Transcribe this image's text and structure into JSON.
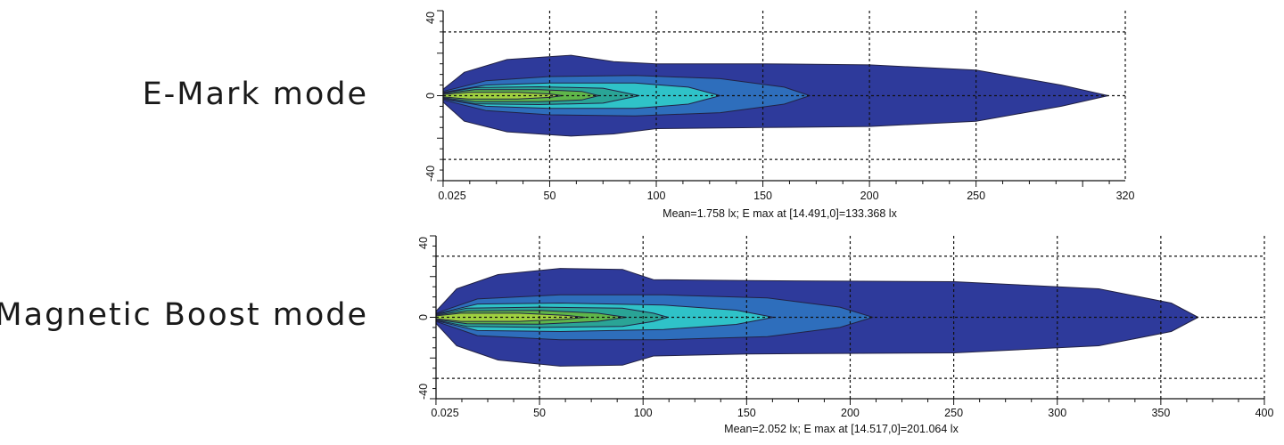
{
  "labels": {
    "chart1": "E-Mark mode",
    "chart2": "Magnetic Boost mode"
  },
  "colors": {
    "c1": "#2e3a9b",
    "c2": "#2e6ebc",
    "c3": "#2fc2c8",
    "c4": "#2aa496",
    "c5": "#5fb64a",
    "c6": "#9fd140",
    "outline": "#222244",
    "grid": "#111111"
  },
  "chart_data": [
    {
      "type": "area",
      "title": "E-Mark mode",
      "caption": "Mean=1.758  lx;  E  max  at [14.491,0]=133.368 lx",
      "xlim": [
        0.025,
        320
      ],
      "ylim": [
        -40,
        40
      ],
      "x_ticks": [
        "0.025",
        "50",
        "100",
        "150",
        "200",
        "250",
        "320"
      ],
      "x_tick_values": [
        0.025,
        50,
        100,
        150,
        200,
        250,
        320
      ],
      "y_ticks": [
        "40",
        "0",
        "-40"
      ],
      "y_tick_values": [
        40,
        0,
        -40
      ],
      "grid": true,
      "series": [
        {
          "color_key": "c1",
          "points": [
            [
              0.025,
              -3
            ],
            [
              10,
              -12
            ],
            [
              30,
              -17
            ],
            [
              60,
              -19
            ],
            [
              80,
              -18
            ],
            [
              100,
              -15.5
            ],
            [
              150,
              -15
            ],
            [
              200,
              -14.5
            ],
            [
              250,
              -12
            ],
            [
              290,
              -5
            ],
            [
              312,
              0
            ],
            [
              290,
              5
            ],
            [
              250,
              12
            ],
            [
              200,
              14.5
            ],
            [
              150,
              15
            ],
            [
              100,
              15
            ],
            [
              80,
              16
            ],
            [
              60,
              19
            ],
            [
              30,
              17
            ],
            [
              10,
              11
            ],
            [
              0.025,
              3
            ]
          ]
        },
        {
          "color_key": "c2",
          "points": [
            [
              0.025,
              -2
            ],
            [
              20,
              -7
            ],
            [
              50,
              -9
            ],
            [
              90,
              -9.5
            ],
            [
              130,
              -8
            ],
            [
              160,
              -4
            ],
            [
              172,
              0
            ],
            [
              160,
              4
            ],
            [
              130,
              8
            ],
            [
              90,
              9.5
            ],
            [
              50,
              9
            ],
            [
              20,
              7
            ],
            [
              0.025,
              2
            ]
          ]
        },
        {
          "color_key": "c3",
          "points": [
            [
              0.025,
              -1.6
            ],
            [
              20,
              -5
            ],
            [
              50,
              -6
            ],
            [
              90,
              -6
            ],
            [
              115,
              -4
            ],
            [
              130,
              0
            ],
            [
              115,
              4
            ],
            [
              90,
              6
            ],
            [
              50,
              6
            ],
            [
              20,
              5
            ],
            [
              0.025,
              1.6
            ]
          ]
        },
        {
          "color_key": "c4",
          "points": [
            [
              0.025,
              -1.3
            ],
            [
              15,
              -3.8
            ],
            [
              45,
              -4.2
            ],
            [
              75,
              -3.5
            ],
            [
              92,
              0
            ],
            [
              75,
              3.5
            ],
            [
              45,
              4.2
            ],
            [
              15,
              3.8
            ],
            [
              0.025,
              1.3
            ]
          ]
        },
        {
          "color_key": "c5",
          "points": [
            [
              0.025,
              -1
            ],
            [
              15,
              -2.8
            ],
            [
              45,
              -2.8
            ],
            [
              65,
              -2
            ],
            [
              73,
              0
            ],
            [
              65,
              2
            ],
            [
              45,
              2.8
            ],
            [
              15,
              2.8
            ],
            [
              0.025,
              1
            ]
          ]
        },
        {
          "color_key": "c6",
          "points": [
            [
              0.025,
              -0.6
            ],
            [
              12,
              -1.6
            ],
            [
              35,
              -1.6
            ],
            [
              50,
              -0.8
            ],
            [
              56,
              0
            ],
            [
              50,
              0.8
            ],
            [
              35,
              1.6
            ],
            [
              12,
              1.6
            ],
            [
              0.025,
              0.6
            ]
          ]
        }
      ]
    },
    {
      "type": "area",
      "title": "Magnetic Boost mode",
      "caption": "Mean=2.052 lx; E max at [14.517,0]=201.064 lx",
      "xlim": [
        0.025,
        400
      ],
      "ylim": [
        -40,
        40
      ],
      "x_ticks": [
        "0.025",
        "50",
        "100",
        "150",
        "200",
        "250",
        "300",
        "350",
        "400"
      ],
      "x_tick_values": [
        0.025,
        50,
        100,
        150,
        200,
        250,
        300,
        350,
        400
      ],
      "y_ticks": [
        "40",
        "0",
        "-40"
      ],
      "y_tick_values": [
        40,
        0,
        -40
      ],
      "grid": true,
      "series": [
        {
          "color_key": "c1",
          "points": [
            [
              0.025,
              -3
            ],
            [
              10,
              -14
            ],
            [
              30,
              -21
            ],
            [
              60,
              -24
            ],
            [
              90,
              -23.5
            ],
            [
              105,
              -19
            ],
            [
              150,
              -18
            ],
            [
              250,
              -17.5
            ],
            [
              320,
              -14
            ],
            [
              355,
              -7
            ],
            [
              368,
              0
            ],
            [
              355,
              7
            ],
            [
              320,
              14
            ],
            [
              250,
              17.5
            ],
            [
              150,
              18
            ],
            [
              105,
              18.5
            ],
            [
              90,
              23.5
            ],
            [
              60,
              24
            ],
            [
              30,
              21
            ],
            [
              10,
              14
            ],
            [
              0.025,
              3
            ]
          ]
        },
        {
          "color_key": "c2",
          "points": [
            [
              0.025,
              -2
            ],
            [
              20,
              -9
            ],
            [
              60,
              -11
            ],
            [
              110,
              -11
            ],
            [
              160,
              -9.5
            ],
            [
              195,
              -5
            ],
            [
              211,
              0
            ],
            [
              195,
              5
            ],
            [
              160,
              9.5
            ],
            [
              110,
              11
            ],
            [
              60,
              11
            ],
            [
              20,
              9
            ],
            [
              0.025,
              2
            ]
          ]
        },
        {
          "color_key": "c3",
          "points": [
            [
              0.025,
              -1.7
            ],
            [
              20,
              -6.5
            ],
            [
              60,
              -7
            ],
            [
              110,
              -6
            ],
            [
              145,
              -3.5
            ],
            [
              163,
              0
            ],
            [
              145,
              3.5
            ],
            [
              110,
              6
            ],
            [
              60,
              7
            ],
            [
              20,
              6.5
            ],
            [
              0.025,
              1.7
            ]
          ]
        },
        {
          "color_key": "c4",
          "points": [
            [
              0.025,
              -1.4
            ],
            [
              15,
              -4.5
            ],
            [
              50,
              -5
            ],
            [
              90,
              -4.5
            ],
            [
              105,
              -2
            ],
            [
              112,
              0
            ],
            [
              105,
              2
            ],
            [
              90,
              4.5
            ],
            [
              50,
              5
            ],
            [
              15,
              4.5
            ],
            [
              0.025,
              1.4
            ]
          ]
        },
        {
          "color_key": "c5",
          "points": [
            [
              0.025,
              -1.1
            ],
            [
              15,
              -3.2
            ],
            [
              50,
              -3.4
            ],
            [
              78,
              -2
            ],
            [
              92,
              0
            ],
            [
              78,
              2
            ],
            [
              50,
              3.4
            ],
            [
              15,
              3.2
            ],
            [
              0.025,
              1.1
            ]
          ]
        },
        {
          "color_key": "c6",
          "points": [
            [
              0.025,
              -0.7
            ],
            [
              12,
              -2
            ],
            [
              40,
              -2
            ],
            [
              62,
              -1
            ],
            [
              72,
              0
            ],
            [
              62,
              1
            ],
            [
              40,
              2
            ],
            [
              12,
              2
            ],
            [
              0.025,
              0.7
            ]
          ]
        }
      ]
    }
  ]
}
